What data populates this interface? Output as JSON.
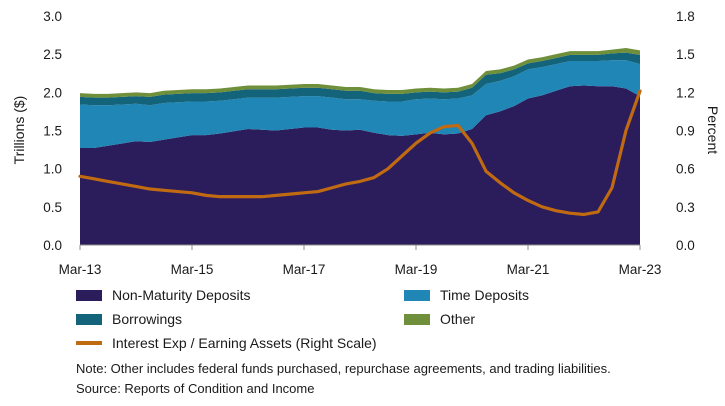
{
  "chart_data": {
    "type": "area",
    "x_start": "Mar-13",
    "x_end": "Mar-23",
    "x_tick_labels": [
      "Mar-13",
      "Mar-15",
      "Mar-17",
      "Mar-19",
      "Mar-21",
      "Mar-23"
    ],
    "ylabel": "Trillions ($)",
    "ylim": [
      0,
      3.0
    ],
    "yticks": [
      "0.0",
      "0.5",
      "1.0",
      "1.5",
      "2.0",
      "2.5",
      "3.0"
    ],
    "y2label": "Percent",
    "y2lim": [
      0,
      1.8
    ],
    "y2ticks": [
      "0.0",
      "0.3",
      "0.6",
      "0.9",
      "1.2",
      "1.5",
      "1.8"
    ],
    "grid": "none",
    "legend_position": "bottom",
    "quarters": [
      "Mar-13",
      "Jun-13",
      "Sep-13",
      "Dec-13",
      "Mar-14",
      "Jun-14",
      "Sep-14",
      "Dec-14",
      "Mar-15",
      "Jun-15",
      "Sep-15",
      "Dec-15",
      "Mar-16",
      "Jun-16",
      "Sep-16",
      "Dec-16",
      "Mar-17",
      "Jun-17",
      "Sep-17",
      "Dec-17",
      "Mar-18",
      "Jun-18",
      "Sep-18",
      "Dec-18",
      "Mar-19",
      "Jun-19",
      "Sep-19",
      "Dec-19",
      "Mar-20",
      "Jun-20",
      "Sep-20",
      "Dec-20",
      "Mar-21",
      "Jun-21",
      "Sep-21",
      "Dec-21",
      "Mar-22",
      "Jun-22",
      "Sep-22",
      "Dec-22",
      "Mar-23"
    ],
    "stacked_series": [
      {
        "name": "Non-Maturity Deposits",
        "color": "#2b1c5c",
        "values": [
          1.27,
          1.27,
          1.3,
          1.33,
          1.36,
          1.35,
          1.38,
          1.41,
          1.44,
          1.44,
          1.46,
          1.49,
          1.52,
          1.51,
          1.5,
          1.52,
          1.54,
          1.54,
          1.51,
          1.5,
          1.51,
          1.47,
          1.44,
          1.43,
          1.45,
          1.47,
          1.45,
          1.46,
          1.52,
          1.7,
          1.75,
          1.82,
          1.92,
          1.96,
          2.02,
          2.08,
          2.09,
          2.08,
          2.08,
          2.05,
          1.95
        ]
      },
      {
        "name": "Time Deposits",
        "color": "#1f86b5",
        "values": [
          0.57,
          0.56,
          0.53,
          0.51,
          0.49,
          0.48,
          0.48,
          0.46,
          0.44,
          0.44,
          0.43,
          0.42,
          0.41,
          0.42,
          0.43,
          0.42,
          0.41,
          0.41,
          0.42,
          0.41,
          0.4,
          0.42,
          0.44,
          0.45,
          0.46,
          0.45,
          0.46,
          0.46,
          0.44,
          0.41,
          0.4,
          0.39,
          0.38,
          0.37,
          0.35,
          0.33,
          0.32,
          0.33,
          0.34,
          0.37,
          0.42
        ]
      },
      {
        "name": "Borrowings",
        "color": "#13637a",
        "values": [
          0.1,
          0.1,
          0.1,
          0.1,
          0.1,
          0.11,
          0.11,
          0.11,
          0.11,
          0.11,
          0.11,
          0.11,
          0.11,
          0.11,
          0.11,
          0.11,
          0.11,
          0.11,
          0.11,
          0.11,
          0.11,
          0.1,
          0.1,
          0.1,
          0.09,
          0.09,
          0.09,
          0.09,
          0.1,
          0.12,
          0.1,
          0.09,
          0.08,
          0.08,
          0.08,
          0.08,
          0.08,
          0.08,
          0.09,
          0.1,
          0.12
        ]
      },
      {
        "name": "Other",
        "color": "#6f8f3a",
        "values": [
          0.05,
          0.05,
          0.05,
          0.05,
          0.05,
          0.05,
          0.05,
          0.05,
          0.05,
          0.05,
          0.05,
          0.05,
          0.05,
          0.05,
          0.05,
          0.05,
          0.05,
          0.05,
          0.05,
          0.05,
          0.05,
          0.05,
          0.05,
          0.05,
          0.05,
          0.05,
          0.05,
          0.05,
          0.05,
          0.05,
          0.05,
          0.05,
          0.05,
          0.05,
          0.05,
          0.05,
          0.05,
          0.05,
          0.05,
          0.06,
          0.06
        ]
      }
    ],
    "line_series": {
      "name": "Interest Exp / Earning Assets (Right Scale)",
      "axis": "right",
      "color": "#c06a12",
      "values": [
        0.54,
        0.52,
        0.5,
        0.48,
        0.46,
        0.44,
        0.43,
        0.42,
        0.41,
        0.39,
        0.38,
        0.38,
        0.38,
        0.38,
        0.39,
        0.4,
        0.41,
        0.42,
        0.45,
        0.48,
        0.5,
        0.53,
        0.6,
        0.7,
        0.8,
        0.88,
        0.93,
        0.94,
        0.8,
        0.58,
        0.49,
        0.41,
        0.35,
        0.3,
        0.27,
        0.25,
        0.24,
        0.26,
        0.45,
        0.9,
        1.21
      ]
    }
  },
  "legend": {
    "non_maturity": "Non-Maturity Deposits",
    "time_deposits": "Time Deposits",
    "borrowings": "Borrowings",
    "other": "Other",
    "interest": "Interest Exp / Earning Assets (Right Scale)"
  },
  "notes": {
    "note": "Note: Other includes federal funds purchased, repurchase agreements, and trading liabilities.",
    "source": "Source: Reports of Condition and Income"
  }
}
